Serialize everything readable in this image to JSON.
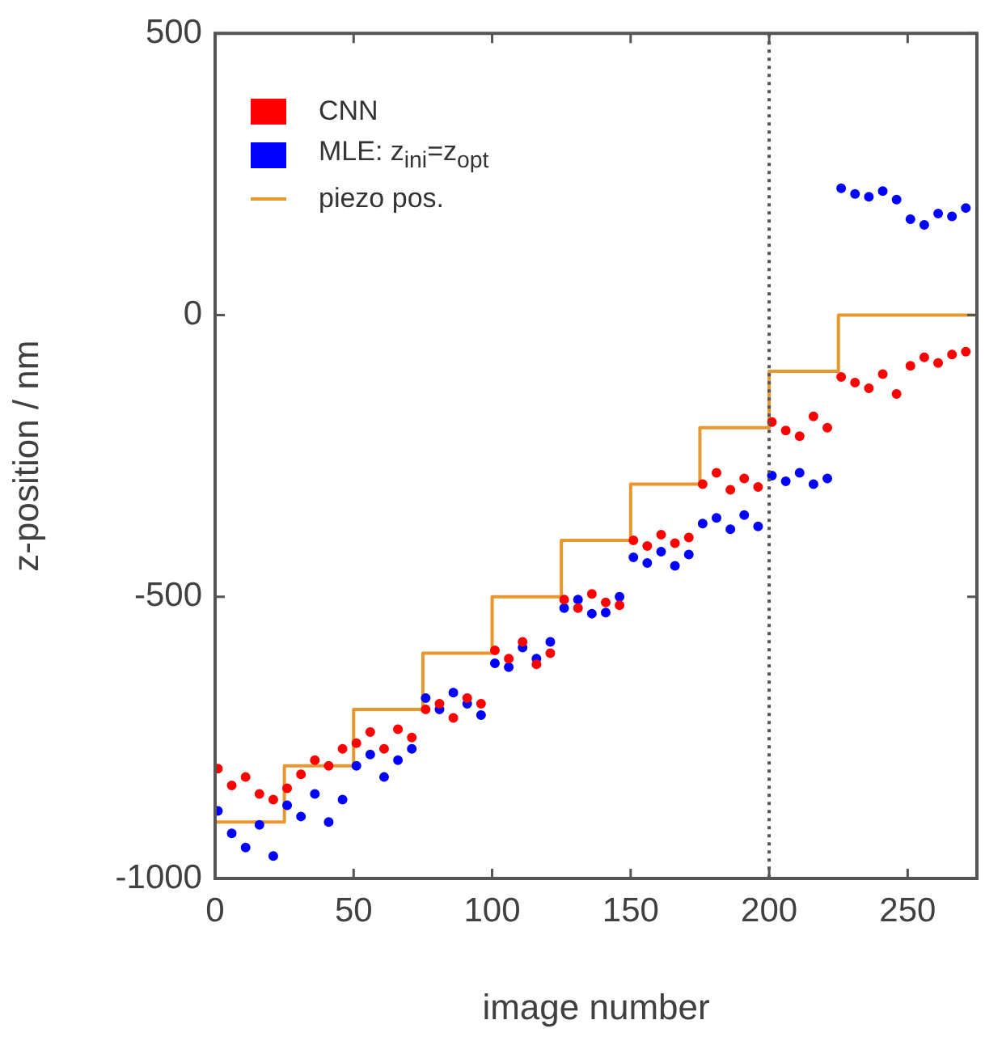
{
  "chart_data": {
    "type": "scatter",
    "xlabel": "image number",
    "ylabel": "z-position / nm",
    "xlim": [
      0,
      275
    ],
    "xticks": [
      0,
      50,
      100,
      150,
      200,
      250
    ],
    "ylim": [
      -1000,
      500
    ],
    "yticks": [
      -1000,
      -500,
      0,
      500
    ],
    "legend": "top left",
    "marker": "circle",
    "ref_lines": [
      {
        "axis": "x",
        "value": 200,
        "line_style": "dotted",
        "color": "#555555"
      }
    ],
    "series": [
      {
        "name": "CNN",
        "color": "#ff0000",
        "x": [
          1,
          6,
          11,
          16,
          21,
          26,
          31,
          36,
          41,
          46,
          51,
          56,
          61,
          66,
          71,
          76,
          81,
          86,
          91,
          96,
          101,
          106,
          111,
          116,
          121,
          126,
          131,
          136,
          141,
          146,
          151,
          156,
          161,
          166,
          171,
          176,
          181,
          186,
          191,
          196,
          201,
          206,
          211,
          216,
          221,
          226,
          231,
          236,
          241,
          246,
          251,
          256,
          261,
          266,
          271
        ],
        "values": [
          -805,
          -835,
          -820,
          -850,
          -860,
          -840,
          -815,
          -790,
          -800,
          -770,
          -760,
          -740,
          -770,
          -735,
          -750,
          -700,
          -690,
          -715,
          -680,
          -690,
          -595,
          -610,
          -580,
          -620,
          -600,
          -505,
          -520,
          -495,
          -510,
          -515,
          -400,
          -410,
          -390,
          -405,
          -395,
          -300,
          -280,
          -310,
          -290,
          -305,
          -190,
          -205,
          -215,
          -180,
          -200,
          -110,
          -120,
          -130,
          -105,
          -140,
          -90,
          -75,
          -85,
          -70,
          -65
        ]
      },
      {
        "name": "MLE: z$_{ini}$=z$_{opt}$",
        "color": "#0000ff",
        "x": [
          1,
          6,
          11,
          16,
          21,
          26,
          31,
          36,
          41,
          46,
          51,
          56,
          61,
          66,
          71,
          76,
          81,
          86,
          91,
          96,
          101,
          106,
          111,
          116,
          121,
          126,
          131,
          136,
          141,
          146,
          151,
          156,
          161,
          166,
          171,
          176,
          181,
          186,
          191,
          196,
          201,
          206,
          211,
          216,
          221,
          226,
          231,
          236,
          241,
          246,
          251,
          256,
          261,
          266,
          271
        ],
        "values": [
          -880,
          -920,
          -945,
          -905,
          -960,
          -870,
          -890,
          -850,
          -900,
          -860,
          -800,
          -780,
          -820,
          -790,
          -770,
          -680,
          -700,
          -670,
          -690,
          -710,
          -618,
          -625,
          -590,
          -610,
          -580,
          -520,
          -505,
          -530,
          -528,
          -500,
          -430,
          -440,
          -420,
          -445,
          -425,
          -370,
          -360,
          -380,
          -355,
          -375,
          -285,
          -295,
          -280,
          -300,
          -290,
          225,
          215,
          210,
          220,
          205,
          170,
          160,
          180,
          175,
          190
        ]
      },
      {
        "name": "piezo pos.",
        "type": "step",
        "marker": "none",
        "color": "#e8962e",
        "x": [
          0,
          25,
          50,
          75,
          100,
          125,
          150,
          175,
          200,
          225,
          250,
          275
        ],
        "values": [
          -1000,
          -900,
          -800,
          -700,
          -600,
          -500,
          -400,
          -300,
          -200,
          -100,
          0,
          0
        ]
      }
    ]
  }
}
